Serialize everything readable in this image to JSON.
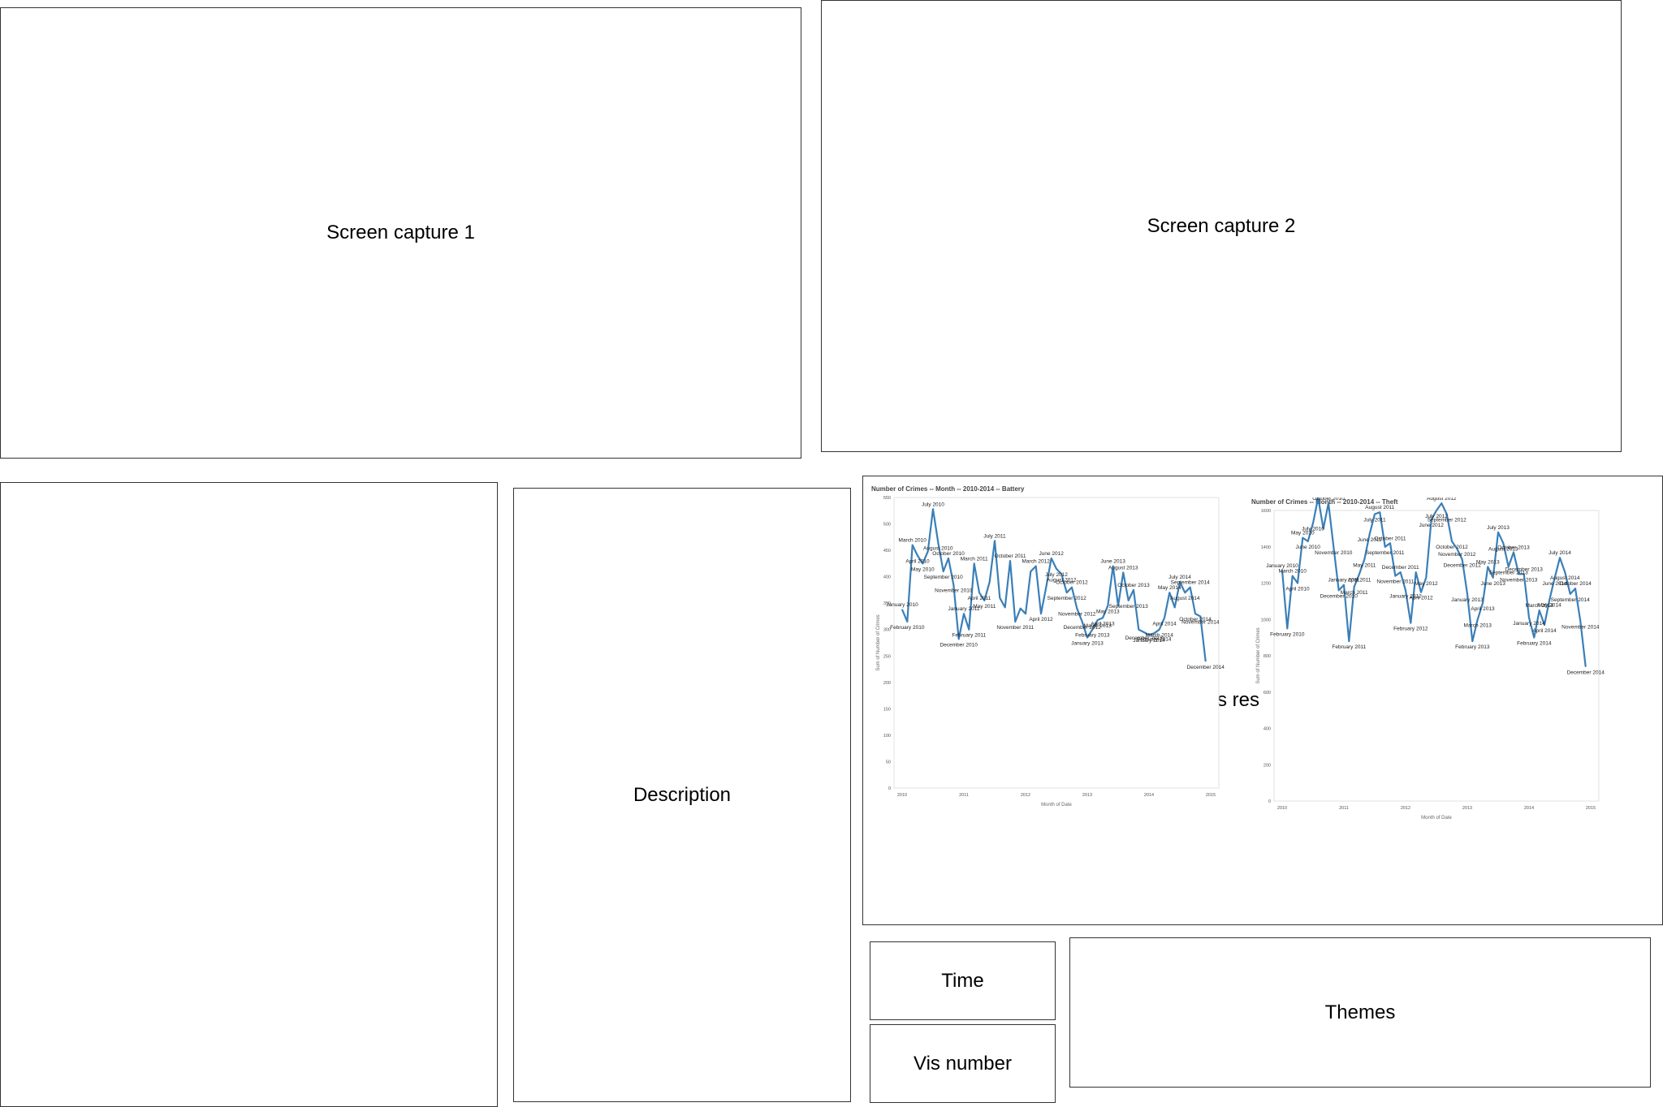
{
  "panels": {
    "capture1": "Screen capture 1",
    "capture2": "Screen capture 2",
    "description": "Description",
    "result_partial": "s res",
    "time": "Time",
    "vis_number": "Vis number",
    "themes": "Themes"
  },
  "chart_data": [
    {
      "type": "line",
      "title": "Number of Crimes -- Month -- 2010-2014 -- Battery",
      "xlabel": "Month of Date",
      "ylabel": "Sum of Number of Crimes",
      "ylim": [
        0,
        550
      ],
      "yticks": [
        0,
        50,
        100,
        150,
        200,
        250,
        300,
        350,
        400,
        450,
        500,
        550
      ],
      "xticks": [
        "2010",
        "2011",
        "2012",
        "2013",
        "2014",
        "2015"
      ],
      "line_color": "#3a7fb8",
      "labels": [
        "January 2010",
        "February 2010",
        "March 2010",
        "April 2010",
        "May 2010",
        "June 2010",
        "July 2010",
        "August 2010",
        "September 2010",
        "October 2010",
        "November 2010",
        "December 2010",
        "January 2011",
        "February 2011",
        "March 2011",
        "April 2011",
        "May 2011",
        "June 2011",
        "July 2011",
        "August 2011",
        "September 2011",
        "October 2011",
        "November 2011",
        "December 2011",
        "January 2012",
        "February 2012",
        "March 2012",
        "April 2012",
        "May 2012",
        "June 2012",
        "July 2012",
        "August 2012",
        "September 2012",
        "October 2012",
        "November 2012",
        "December 2012",
        "January 2013",
        "February 2013",
        "March 2013",
        "April 2013",
        "May 2013",
        "June 2013",
        "July 2013",
        "August 2013",
        "September 2013",
        "October 2013",
        "November 2013",
        "December 2013",
        "January 2014",
        "February 2014",
        "March 2014",
        "April 2014",
        "May 2014",
        "June 2014",
        "July 2014",
        "August 2014",
        "September 2014",
        "October 2014",
        "November 2014",
        "December 2014"
      ],
      "values": [
        338,
        315,
        460,
        440,
        425,
        448,
        528,
        465,
        410,
        435,
        385,
        282,
        330,
        300,
        425,
        370,
        355,
        390,
        468,
        360,
        342,
        430,
        315,
        340,
        330,
        410,
        420,
        330,
        380,
        435,
        415,
        405,
        370,
        380,
        340,
        315,
        285,
        300,
        318,
        322,
        345,
        420,
        345,
        408,
        355,
        375,
        300,
        295,
        290,
        293,
        300,
        322,
        370,
        342,
        390,
        370,
        380,
        330,
        325,
        240
      ],
      "shown_labels": [
        "January 2010",
        "February 2010",
        "March 2010",
        "April 2010",
        "May 2010",
        "July 2010",
        "August 2010",
        "September 2010",
        "October 2010",
        "November 2010",
        "December 2010",
        "January 2011",
        "February 2011",
        "March 2011",
        "April 2011",
        "May 2011",
        "July 2011",
        "October 2011",
        "November 2011",
        "March 2012",
        "April 2012",
        "June 2012",
        "July 2012",
        "August 2012",
        "September 2012",
        "October 2012",
        "November 2012",
        "December 2012",
        "January 2013",
        "February 2013",
        "March 2013",
        "April 2013",
        "May 2013",
        "June 2013",
        "August 2013",
        "September 2013",
        "October 2013",
        "December 2013",
        "January 2014",
        "February 2014",
        "March 2014",
        "April 2014",
        "May 2014",
        "July 2014",
        "August 2014",
        "September 2014",
        "October 2014",
        "November 2014",
        "December 2014"
      ]
    },
    {
      "type": "line",
      "title": "Number of Crimes -- Month -- 2010-2014 -- Theft",
      "xlabel": "Month of Date",
      "ylabel": "Sum of Number of Crimes",
      "ylim": [
        0,
        1600
      ],
      "yticks": [
        0,
        200,
        400,
        600,
        800,
        1000,
        1200,
        1400,
        1600
      ],
      "xticks": [
        "2010",
        "2011",
        "2012",
        "2013",
        "2014",
        "2015"
      ],
      "line_color": "#3a7fb8",
      "labels": [
        "January 2010",
        "February 2010",
        "March 2010",
        "April 2010",
        "May 2010",
        "June 2010",
        "July 2010",
        "August 2010",
        "September 2010",
        "October 2010",
        "November 2010",
        "December 2010",
        "January 2011",
        "February 2011",
        "March 2011",
        "April 2011",
        "May 2011",
        "June 2011",
        "July 2011",
        "August 2011",
        "September 2011",
        "October 2011",
        "November 2011",
        "December 2011",
        "January 2012",
        "February 2012",
        "March 2012",
        "April 2012",
        "May 2012",
        "June 2012",
        "July 2012",
        "August 2012",
        "September 2012",
        "October 2012",
        "November 2012",
        "December 2012",
        "January 2013",
        "February 2013",
        "March 2013",
        "April 2013",
        "May 2013",
        "June 2013",
        "July 2013",
        "August 2013",
        "September 2013",
        "October 2013",
        "November 2013",
        "December 2013",
        "January 2014",
        "February 2014",
        "March 2014",
        "April 2014",
        "May 2014",
        "June 2014",
        "July 2014",
        "August 2014",
        "September 2014",
        "October 2014",
        "November 2014",
        "December 2014"
      ],
      "values": [
        1270,
        950,
        1240,
        1200,
        1450,
        1430,
        1530,
        1670,
        1500,
        1640,
        1400,
        1160,
        1190,
        880,
        1180,
        1250,
        1330,
        1470,
        1580,
        1590,
        1400,
        1420,
        1240,
        1260,
        1160,
        980,
        1260,
        1150,
        1230,
        1550,
        1600,
        1640,
        1580,
        1430,
        1390,
        1330,
        1140,
        880,
        1000,
        1090,
        1290,
        1230,
        1480,
        1420,
        1290,
        1370,
        1250,
        1250,
        1010,
        900,
        1050,
        970,
        1110,
        1230,
        1340,
        1260,
        1140,
        1170,
        990,
        740
      ],
      "shown_labels": [
        "January 2010",
        "February 2010",
        "March 2010",
        "April 2010",
        "May 2010",
        "June 2010",
        "July 2010",
        "August 2010",
        "October 2010",
        "November 2010",
        "December 2010",
        "January 2011",
        "February 2011",
        "March 2011",
        "April 2011",
        "May 2011",
        "June 2011",
        "July 2011",
        "August 2011",
        "September 2011",
        "October 2011",
        "November 2011",
        "December 2011",
        "January 2012",
        "February 2012",
        "April 2012",
        "May 2012",
        "June 2012",
        "July 2012",
        "August 2012",
        "September 2012",
        "October 2012",
        "November 2012",
        "December 2012",
        "January 2013",
        "February 2013",
        "March 2013",
        "April 2013",
        "May 2013",
        "June 2013",
        "July 2013",
        "August 2013",
        "September 2013",
        "October 2013",
        "November 2013",
        "December 2013",
        "January 2014",
        "February 2014",
        "March 2014",
        "April 2014",
        "May 2014",
        "June 2014",
        "July 2014",
        "August 2014",
        "September 2014",
        "October 2014",
        "November 2014",
        "December 2014"
      ]
    }
  ]
}
